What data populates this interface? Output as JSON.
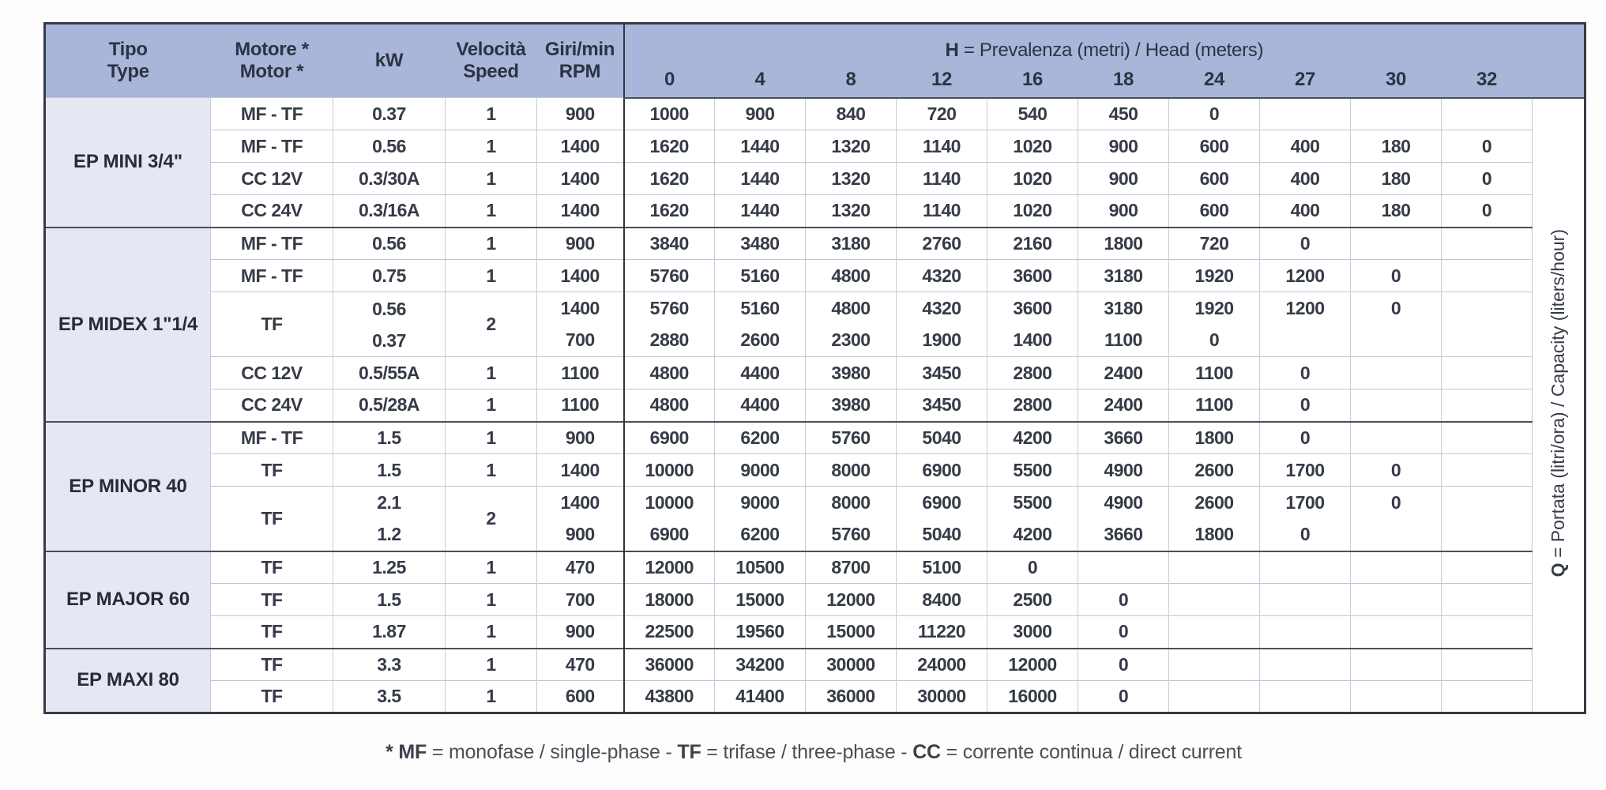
{
  "colors": {
    "header_blue": "#a9b6da",
    "type_column_bg": "#e5e7f2",
    "dark_border": "#363b45",
    "light_grid": "#bdc5d9",
    "text": "#353b47"
  },
  "table": {
    "headers": {
      "tipo": [
        "Tipo",
        "Type"
      ],
      "motore": [
        "Motore *",
        "Motor *"
      ],
      "kw": "kW",
      "velocita": [
        "Velocità",
        "Speed"
      ],
      "giri": [
        "Giri/min",
        "RPM"
      ],
      "h_bold": "H",
      "h_rest": " = Prevalenza (metri) / Head (meters)",
      "head_ticks": [
        "0",
        "4",
        "8",
        "12",
        "16",
        "18",
        "24",
        "27",
        "30",
        "32"
      ]
    },
    "q_label": {
      "bold": "Q",
      "rest": " = Portata (litri/ora) / Capacity (liters/hour)"
    },
    "groups": [
      {
        "type": "EP MINI 3/4\"",
        "rows": [
          {
            "motor": "MF - TF",
            "kw": [
              "0.37"
            ],
            "speed": "1",
            "rpm": [
              "900"
            ],
            "lines": [
              [
                "1000",
                "900",
                "840",
                "720",
                "540",
                "450",
                "0",
                "",
                "",
                ""
              ]
            ]
          },
          {
            "motor": "MF - TF",
            "kw": [
              "0.56"
            ],
            "speed": "1",
            "rpm": [
              "1400"
            ],
            "lines": [
              [
                "1620",
                "1440",
                "1320",
                "1140",
                "1020",
                "900",
                "600",
                "400",
                "180",
                "0"
              ]
            ]
          },
          {
            "motor": "CC 12V",
            "kw": [
              "0.3/30A"
            ],
            "speed": "1",
            "rpm": [
              "1400"
            ],
            "lines": [
              [
                "1620",
                "1440",
                "1320",
                "1140",
                "1020",
                "900",
                "600",
                "400",
                "180",
                "0"
              ]
            ]
          },
          {
            "motor": "CC 24V",
            "kw": [
              "0.3/16A"
            ],
            "speed": "1",
            "rpm": [
              "1400"
            ],
            "lines": [
              [
                "1620",
                "1440",
                "1320",
                "1140",
                "1020",
                "900",
                "600",
                "400",
                "180",
                "0"
              ]
            ]
          }
        ]
      },
      {
        "type": "EP MIDEX 1\"1/4",
        "rows": [
          {
            "motor": "MF - TF",
            "kw": [
              "0.56"
            ],
            "speed": "1",
            "rpm": [
              "900"
            ],
            "lines": [
              [
                "3840",
                "3480",
                "3180",
                "2760",
                "2160",
                "1800",
                "720",
                "0",
                "",
                ""
              ]
            ]
          },
          {
            "motor": "MF - TF",
            "kw": [
              "0.75"
            ],
            "speed": "1",
            "rpm": [
              "1400"
            ],
            "lines": [
              [
                "5760",
                "5160",
                "4800",
                "4320",
                "3600",
                "3180",
                "1920",
                "1200",
                "0",
                ""
              ]
            ]
          },
          {
            "motor": "TF",
            "kw": [
              "0.56",
              "0.37"
            ],
            "speed": "2",
            "rpm": [
              "1400",
              "700"
            ],
            "lines": [
              [
                "5760",
                "5160",
                "4800",
                "4320",
                "3600",
                "3180",
                "1920",
                "1200",
                "0",
                ""
              ],
              [
                "2880",
                "2600",
                "2300",
                "1900",
                "1400",
                "1100",
                "0",
                "",
                "",
                ""
              ]
            ]
          },
          {
            "motor": "CC 12V",
            "kw": [
              "0.5/55A"
            ],
            "speed": "1",
            "rpm": [
              "1100"
            ],
            "lines": [
              [
                "4800",
                "4400",
                "3980",
                "3450",
                "2800",
                "2400",
                "1100",
                "0",
                "",
                ""
              ]
            ]
          },
          {
            "motor": "CC 24V",
            "kw": [
              "0.5/28A"
            ],
            "speed": "1",
            "rpm": [
              "1100"
            ],
            "lines": [
              [
                "4800",
                "4400",
                "3980",
                "3450",
                "2800",
                "2400",
                "1100",
                "0",
                "",
                ""
              ]
            ]
          }
        ]
      },
      {
        "type": "EP MINOR 40",
        "rows": [
          {
            "motor": "MF - TF",
            "kw": [
              "1.5"
            ],
            "speed": "1",
            "rpm": [
              "900"
            ],
            "lines": [
              [
                "6900",
                "6200",
                "5760",
                "5040",
                "4200",
                "3660",
                "1800",
                "0",
                "",
                ""
              ]
            ]
          },
          {
            "motor": "TF",
            "kw": [
              "1.5"
            ],
            "speed": "1",
            "rpm": [
              "1400"
            ],
            "lines": [
              [
                "10000",
                "9000",
                "8000",
                "6900",
                "5500",
                "4900",
                "2600",
                "1700",
                "0",
                ""
              ]
            ]
          },
          {
            "motor": "TF",
            "kw": [
              "2.1",
              "1.2"
            ],
            "speed": "2",
            "rpm": [
              "1400",
              "900"
            ],
            "lines": [
              [
                "10000",
                "9000",
                "8000",
                "6900",
                "5500",
                "4900",
                "2600",
                "1700",
                "0",
                ""
              ],
              [
                "6900",
                "6200",
                "5760",
                "5040",
                "4200",
                "3660",
                "1800",
                "0",
                "",
                ""
              ]
            ]
          }
        ]
      },
      {
        "type": "EP MAJOR 60",
        "rows": [
          {
            "motor": "TF",
            "kw": [
              "1.25"
            ],
            "speed": "1",
            "rpm": [
              "470"
            ],
            "lines": [
              [
                "12000",
                "10500",
                "8700",
                "5100",
                "0",
                "",
                "",
                "",
                "",
                ""
              ]
            ]
          },
          {
            "motor": "TF",
            "kw": [
              "1.5"
            ],
            "speed": "1",
            "rpm": [
              "700"
            ],
            "lines": [
              [
                "18000",
                "15000",
                "12000",
                "8400",
                "2500",
                "0",
                "",
                "",
                "",
                ""
              ]
            ]
          },
          {
            "motor": "TF",
            "kw": [
              "1.87"
            ],
            "speed": "1",
            "rpm": [
              "900"
            ],
            "lines": [
              [
                "22500",
                "19560",
                "15000",
                "11220",
                "3000",
                "0",
                "",
                "",
                "",
                ""
              ]
            ]
          }
        ]
      },
      {
        "type": "EP MAXI 80",
        "rows": [
          {
            "motor": "TF",
            "kw": [
              "3.3"
            ],
            "speed": "1",
            "rpm": [
              "470"
            ],
            "lines": [
              [
                "36000",
                "34200",
                "30000",
                "24000",
                "12000",
                "0",
                "",
                "",
                "",
                ""
              ]
            ]
          },
          {
            "motor": "TF",
            "kw": [
              "3.5"
            ],
            "speed": "1",
            "rpm": [
              "600"
            ],
            "lines": [
              [
                "43800",
                "41400",
                "36000",
                "30000",
                "16000",
                "0",
                "",
                "",
                "",
                ""
              ]
            ]
          }
        ]
      }
    ],
    "footnote": {
      "segments": [
        {
          "text": "* MF",
          "bold": true
        },
        {
          "text": " = monofase / single-phase - ",
          "bold": false
        },
        {
          "text": "TF",
          "bold": true
        },
        {
          "text": " = trifase / three-phase - ",
          "bold": false
        },
        {
          "text": "CC",
          "bold": true
        },
        {
          "text": " = corrente continua / direct current",
          "bold": false
        }
      ]
    }
  }
}
